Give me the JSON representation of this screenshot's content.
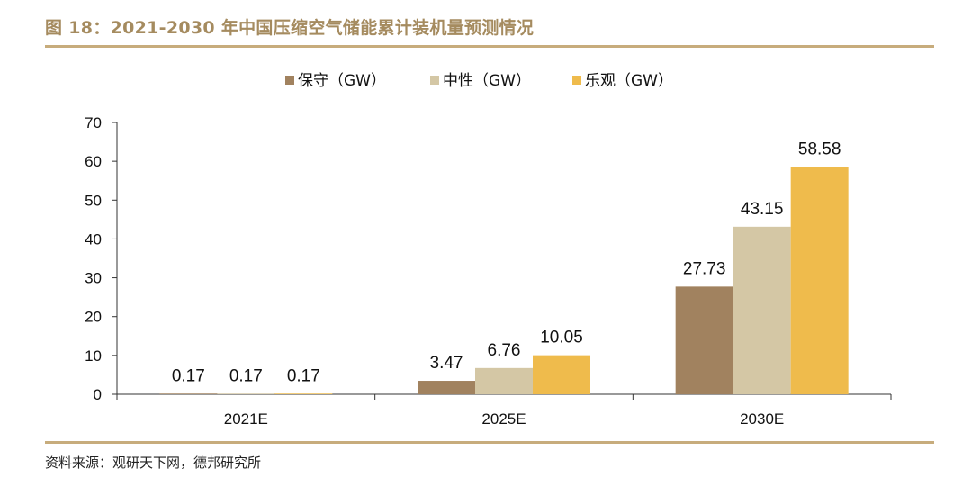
{
  "figure": {
    "title": "图 18：2021-2030 年中国压缩空气储能累计装机量预测情况",
    "source": "资料来源：观研天下网，德邦研究所"
  },
  "colors": {
    "accent_title": "#a58b5f",
    "rule": "#c7ac7c",
    "series_conservative": "#a1825f",
    "series_neutral": "#d4c7a5",
    "series_optimistic": "#efbb4c"
  },
  "chart_data": {
    "type": "bar",
    "categories": [
      "2021E",
      "2025E",
      "2030E"
    ],
    "series": [
      {
        "name": "保守（GW）",
        "values": [
          0.17,
          3.47,
          27.73
        ]
      },
      {
        "name": "中性（GW）",
        "values": [
          0.17,
          6.76,
          43.15
        ]
      },
      {
        "name": "乐观（GW）",
        "values": [
          0.17,
          10.05,
          58.58
        ]
      }
    ],
    "data_labels": [
      [
        "0.17",
        "3.47",
        "27.73"
      ],
      [
        "0.17",
        "6.76",
        "43.15"
      ],
      [
        "0.17",
        "10.05",
        "58.58"
      ]
    ],
    "yticks": [
      "0",
      "10",
      "20",
      "30",
      "40",
      "50",
      "60",
      "70"
    ],
    "ylim": [
      0,
      70
    ],
    "legend_position": "top-center",
    "grid": false
  }
}
